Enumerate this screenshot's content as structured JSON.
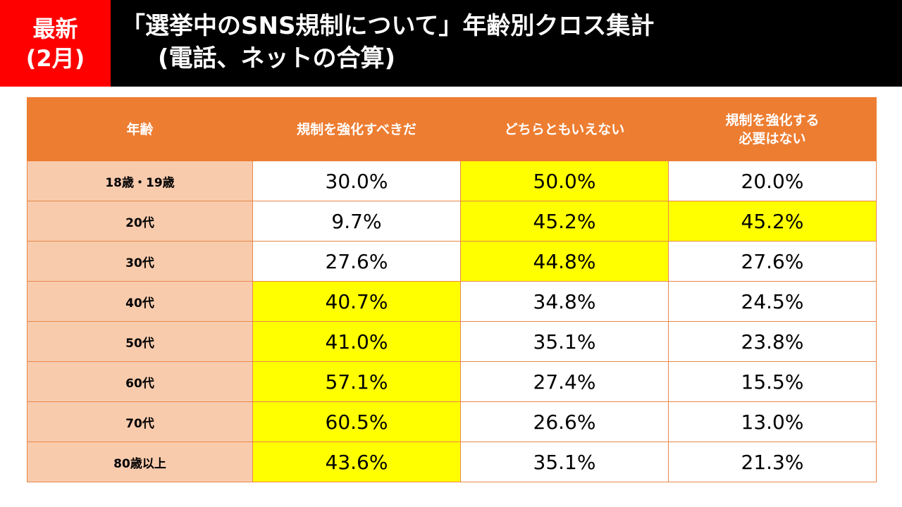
{
  "badge": {
    "line1": "最新",
    "line2": "(2月)"
  },
  "title": {
    "line1": "「選挙中のSNS規制について」年齢別クロス集計",
    "line2": "(電話、ネットの合算)"
  },
  "colors": {
    "header_bg": "#000000",
    "badge_bg": "#ff0000",
    "table_header_bg": "#ed7d31",
    "age_cell_bg": "#f8cbad",
    "highlight": "#ffff00"
  },
  "chart_data": {
    "type": "table",
    "columns": [
      "年齢",
      "規制を強化すべきだ",
      "どちらともいえない",
      "規制を強化する必要はない"
    ],
    "column_label_lines": {
      "col3": [
        "規制を強化する",
        "必要はない"
      ]
    },
    "rows": [
      {
        "age": "18歳・19歳",
        "values": [
          "30.0%",
          "50.0%",
          "20.0%"
        ],
        "highlight": [
          false,
          true,
          false
        ]
      },
      {
        "age": "20代",
        "values": [
          "9.7%",
          "45.2%",
          "45.2%"
        ],
        "highlight": [
          false,
          true,
          true
        ]
      },
      {
        "age": "30代",
        "values": [
          "27.6%",
          "44.8%",
          "27.6%"
        ],
        "highlight": [
          false,
          true,
          false
        ]
      },
      {
        "age": "40代",
        "values": [
          "40.7%",
          "34.8%",
          "24.5%"
        ],
        "highlight": [
          true,
          false,
          false
        ]
      },
      {
        "age": "50代",
        "values": [
          "41.0%",
          "35.1%",
          "23.8%"
        ],
        "highlight": [
          true,
          false,
          false
        ]
      },
      {
        "age": "60代",
        "values": [
          "57.1%",
          "27.4%",
          "15.5%"
        ],
        "highlight": [
          true,
          false,
          false
        ]
      },
      {
        "age": "70代",
        "values": [
          "60.5%",
          "26.6%",
          "13.0%"
        ],
        "highlight": [
          true,
          false,
          false
        ]
      },
      {
        "age": "80歳以上",
        "values": [
          "43.6%",
          "35.1%",
          "21.3%"
        ],
        "highlight": [
          true,
          false,
          false
        ]
      }
    ]
  }
}
